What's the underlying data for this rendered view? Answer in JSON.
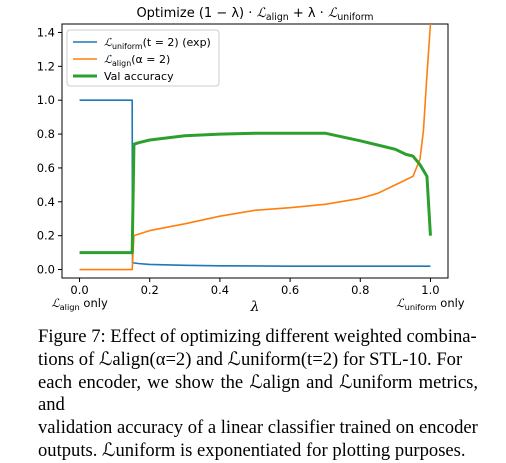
{
  "chart_data": {
    "type": "line",
    "title": "Optimize (1 − λ) · ℒalign + λ · ℒuniform",
    "xlabel": "λ",
    "ylabel": "",
    "xlim": [
      -0.05,
      1.05
    ],
    "ylim": [
      -0.05,
      1.45
    ],
    "xticks": [
      0.0,
      0.2,
      0.4,
      0.6,
      0.8,
      1.0
    ],
    "xtick_labels": [
      "0.0",
      "0.2",
      "0.4",
      "0.6",
      "0.8",
      "1.0"
    ],
    "yticks": [
      0.0,
      0.2,
      0.4,
      0.6,
      0.8,
      1.0,
      1.2,
      1.4
    ],
    "ytick_labels": [
      "0.0",
      "0.2",
      "0.4",
      "0.6",
      "0.8",
      "1.0",
      "1.2",
      "1.4"
    ],
    "grid": false,
    "legend_position": "top-left",
    "extra_labels": {
      "left": "ℒalign only",
      "right": "ℒuniform only"
    },
    "series": [
      {
        "name": "ℒuniform(t = 2) (exp)",
        "color": "#1f77b4",
        "x": [
          0.0,
          0.15,
          0.151,
          0.17,
          0.2,
          0.3,
          0.4,
          0.5,
          0.6,
          0.7,
          0.8,
          0.9,
          1.0
        ],
        "y": [
          1.0,
          1.0,
          0.04,
          0.035,
          0.03,
          0.025,
          0.022,
          0.021,
          0.02,
          0.02,
          0.02,
          0.02,
          0.02
        ]
      },
      {
        "name": "ℒalign(α = 2)",
        "color": "#ff7f0e",
        "x": [
          0.0,
          0.15,
          0.155,
          0.2,
          0.3,
          0.4,
          0.5,
          0.6,
          0.7,
          0.8,
          0.85,
          0.9,
          0.95,
          0.97,
          0.98,
          0.99,
          1.0
        ],
        "y": [
          0.0,
          0.0,
          0.2,
          0.23,
          0.27,
          0.315,
          0.35,
          0.365,
          0.385,
          0.42,
          0.45,
          0.5,
          0.55,
          0.65,
          0.82,
          1.15,
          1.45
        ]
      },
      {
        "name": "Val accuracy",
        "color": "#2ca02c",
        "x": [
          0.0,
          0.15,
          0.155,
          0.17,
          0.2,
          0.3,
          0.4,
          0.5,
          0.6,
          0.7,
          0.8,
          0.9,
          0.93,
          0.95,
          0.97,
          0.99,
          1.0
        ],
        "y": [
          0.1,
          0.1,
          0.74,
          0.75,
          0.765,
          0.79,
          0.8,
          0.805,
          0.805,
          0.805,
          0.76,
          0.71,
          0.68,
          0.67,
          0.62,
          0.55,
          0.2
        ]
      }
    ]
  },
  "caption": {
    "lines": [
      "Figure 7: Effect of optimizing different weighted combina-",
      "tions of ℒalign(α=2) and ℒuniform(t=2) for STL-10. For",
      "each encoder, we show the ℒalign and ℒuniform metrics, and",
      "validation accuracy of a linear classifier trained on encoder",
      "outputs. ℒuniform is exponentiated for plotting purposes."
    ]
  }
}
